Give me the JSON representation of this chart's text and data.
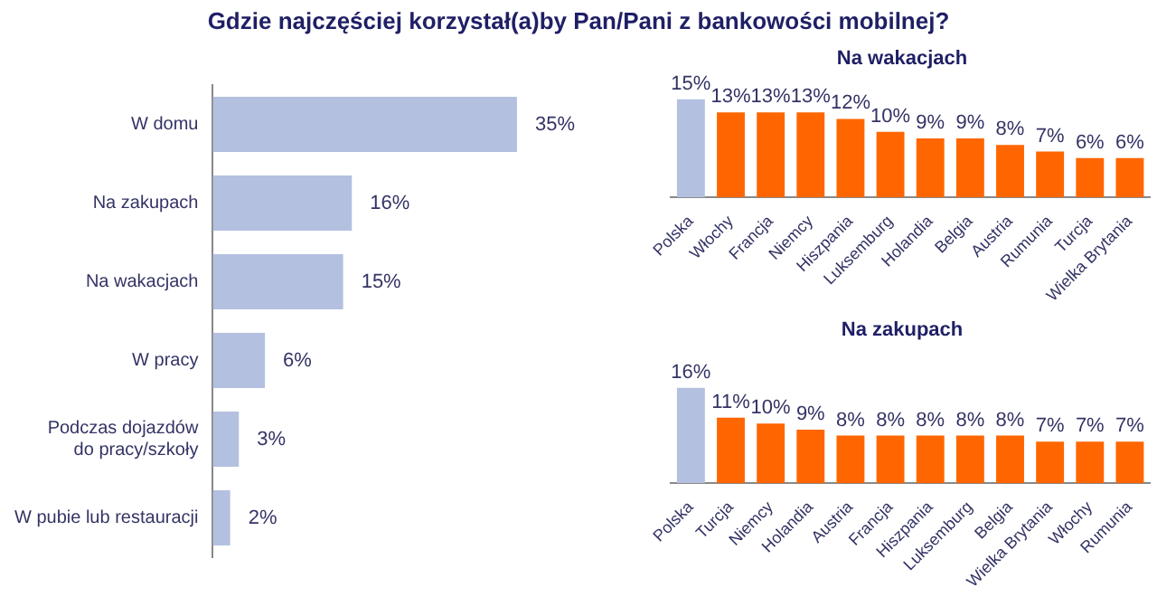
{
  "chart_data": [
    {
      "type": "bar",
      "title": "Gdzie najczęściej korzystał(a)by Pan/Pani z bankowości mobilnej?",
      "orientation": "horizontal",
      "tick_labels": "y",
      "categories": [
        "W domu",
        "Na zakupach",
        "Na wakacjach",
        "W pracy",
        "Podczas dojazdów do pracy/szkoły",
        "W pubie lub restauracji"
      ],
      "values": [
        35,
        16,
        15,
        6,
        3,
        2
      ],
      "color": "#b3c0e0",
      "value_labels": [
        "35%",
        "16%",
        "15%",
        "6%",
        "3%",
        "2%"
      ]
    },
    {
      "type": "bar",
      "title": "Na wakacjach",
      "tick_labels": "x",
      "categories": [
        "Polska",
        "Włochy",
        "Francja",
        "Niemcy",
        "Hiszpania",
        "Luksemburg",
        "Holandia",
        "Belgia",
        "Austria",
        "Rumunia",
        "Turcja",
        "Wielka Brytania"
      ],
      "values": [
        15,
        13,
        13,
        13,
        12,
        10,
        9,
        9,
        8,
        7,
        6,
        6
      ],
      "colors": [
        "#b3c0e0",
        "#ff6600",
        "#ff6600",
        "#ff6600",
        "#ff6600",
        "#ff6600",
        "#ff6600",
        "#ff6600",
        "#ff6600",
        "#ff6600",
        "#ff6600",
        "#ff6600"
      ],
      "value_labels": [
        "15%",
        "13%",
        "13%",
        "13%",
        "12%",
        "10%",
        "9%",
        "9%",
        "8%",
        "7%",
        "6%",
        "6%"
      ]
    },
    {
      "type": "bar",
      "title": "Na zakupach",
      "tick_labels": "x",
      "categories": [
        "Polska",
        "Turcja",
        "Niemcy",
        "Holandia",
        "Austria",
        "Francja",
        "Hiszpania",
        "Luksemburg",
        "Belgia",
        "Wielka Brytania",
        "Włochy",
        "Rumunia"
      ],
      "values": [
        16,
        11,
        10,
        9,
        8,
        8,
        8,
        8,
        8,
        7,
        7,
        7
      ],
      "colors": [
        "#b3c0e0",
        "#ff6600",
        "#ff6600",
        "#ff6600",
        "#ff6600",
        "#ff6600",
        "#ff6600",
        "#ff6600",
        "#ff6600",
        "#ff6600",
        "#ff6600",
        "#ff6600"
      ],
      "value_labels": [
        "16%",
        "11%",
        "10%",
        "9%",
        "8%",
        "8%",
        "8%",
        "8%",
        "8%",
        "7%",
        "7%",
        "7%"
      ]
    }
  ]
}
